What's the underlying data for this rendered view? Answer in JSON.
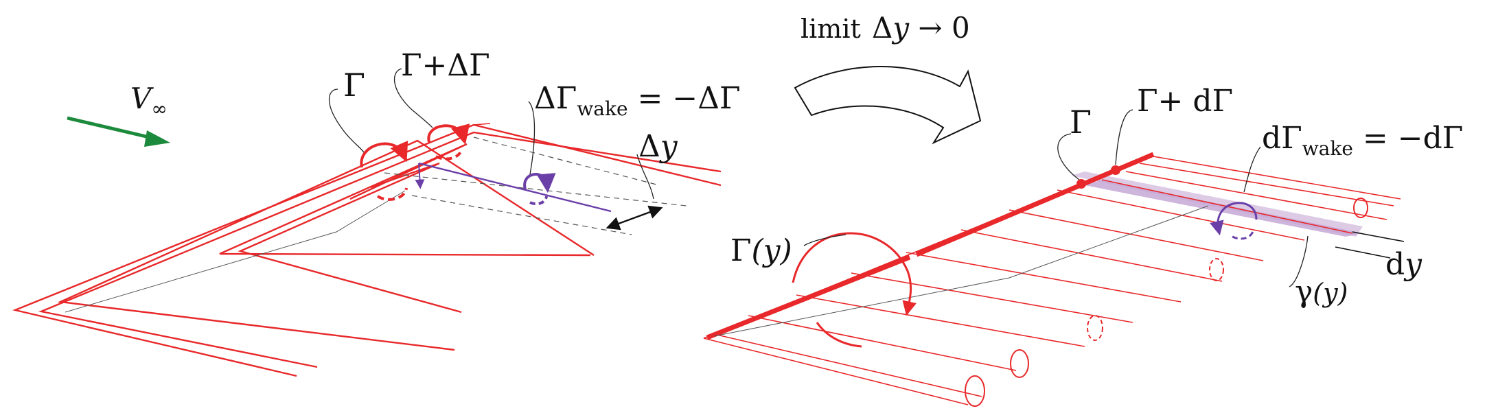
{
  "colors": {
    "vortex": "#e8282a",
    "wake_vortex": "#6a3fa8",
    "wake_sheet": "#c6a8d6",
    "freestream": "#1c8a3c",
    "leader": "#222222",
    "dashed": "#555555"
  },
  "left": {
    "v_inf": {
      "symbol": "V",
      "sub": "∞"
    },
    "gamma": "Γ",
    "gamma_plus": "Γ+ΔΓ",
    "wake": {
      "prefix": "ΔΓ",
      "sub": "wake",
      "suffix": " = −ΔΓ"
    },
    "delta_y": {
      "prefix": "Δ",
      "var": "y"
    }
  },
  "transition": {
    "word": "limit",
    "expr": {
      "prefix": "Δ",
      "var": "y",
      "arrow": " → 0"
    }
  },
  "right": {
    "gamma": "Γ",
    "gamma_plus": "Γ+ dΓ",
    "wake": {
      "prefix": "dΓ",
      "sub": "wake",
      "suffix": " = −dΓ"
    },
    "gamma_y": {
      "main": "Γ",
      "arg": "(y)"
    },
    "dy": {
      "prefix": "d",
      "var": "y"
    },
    "sheet_strength": {
      "main": "γ",
      "arg": "(y)"
    }
  },
  "icons": [
    "freestream-arrow-icon",
    "curved-arrow-icon",
    "circulation-arrow-icon"
  ]
}
